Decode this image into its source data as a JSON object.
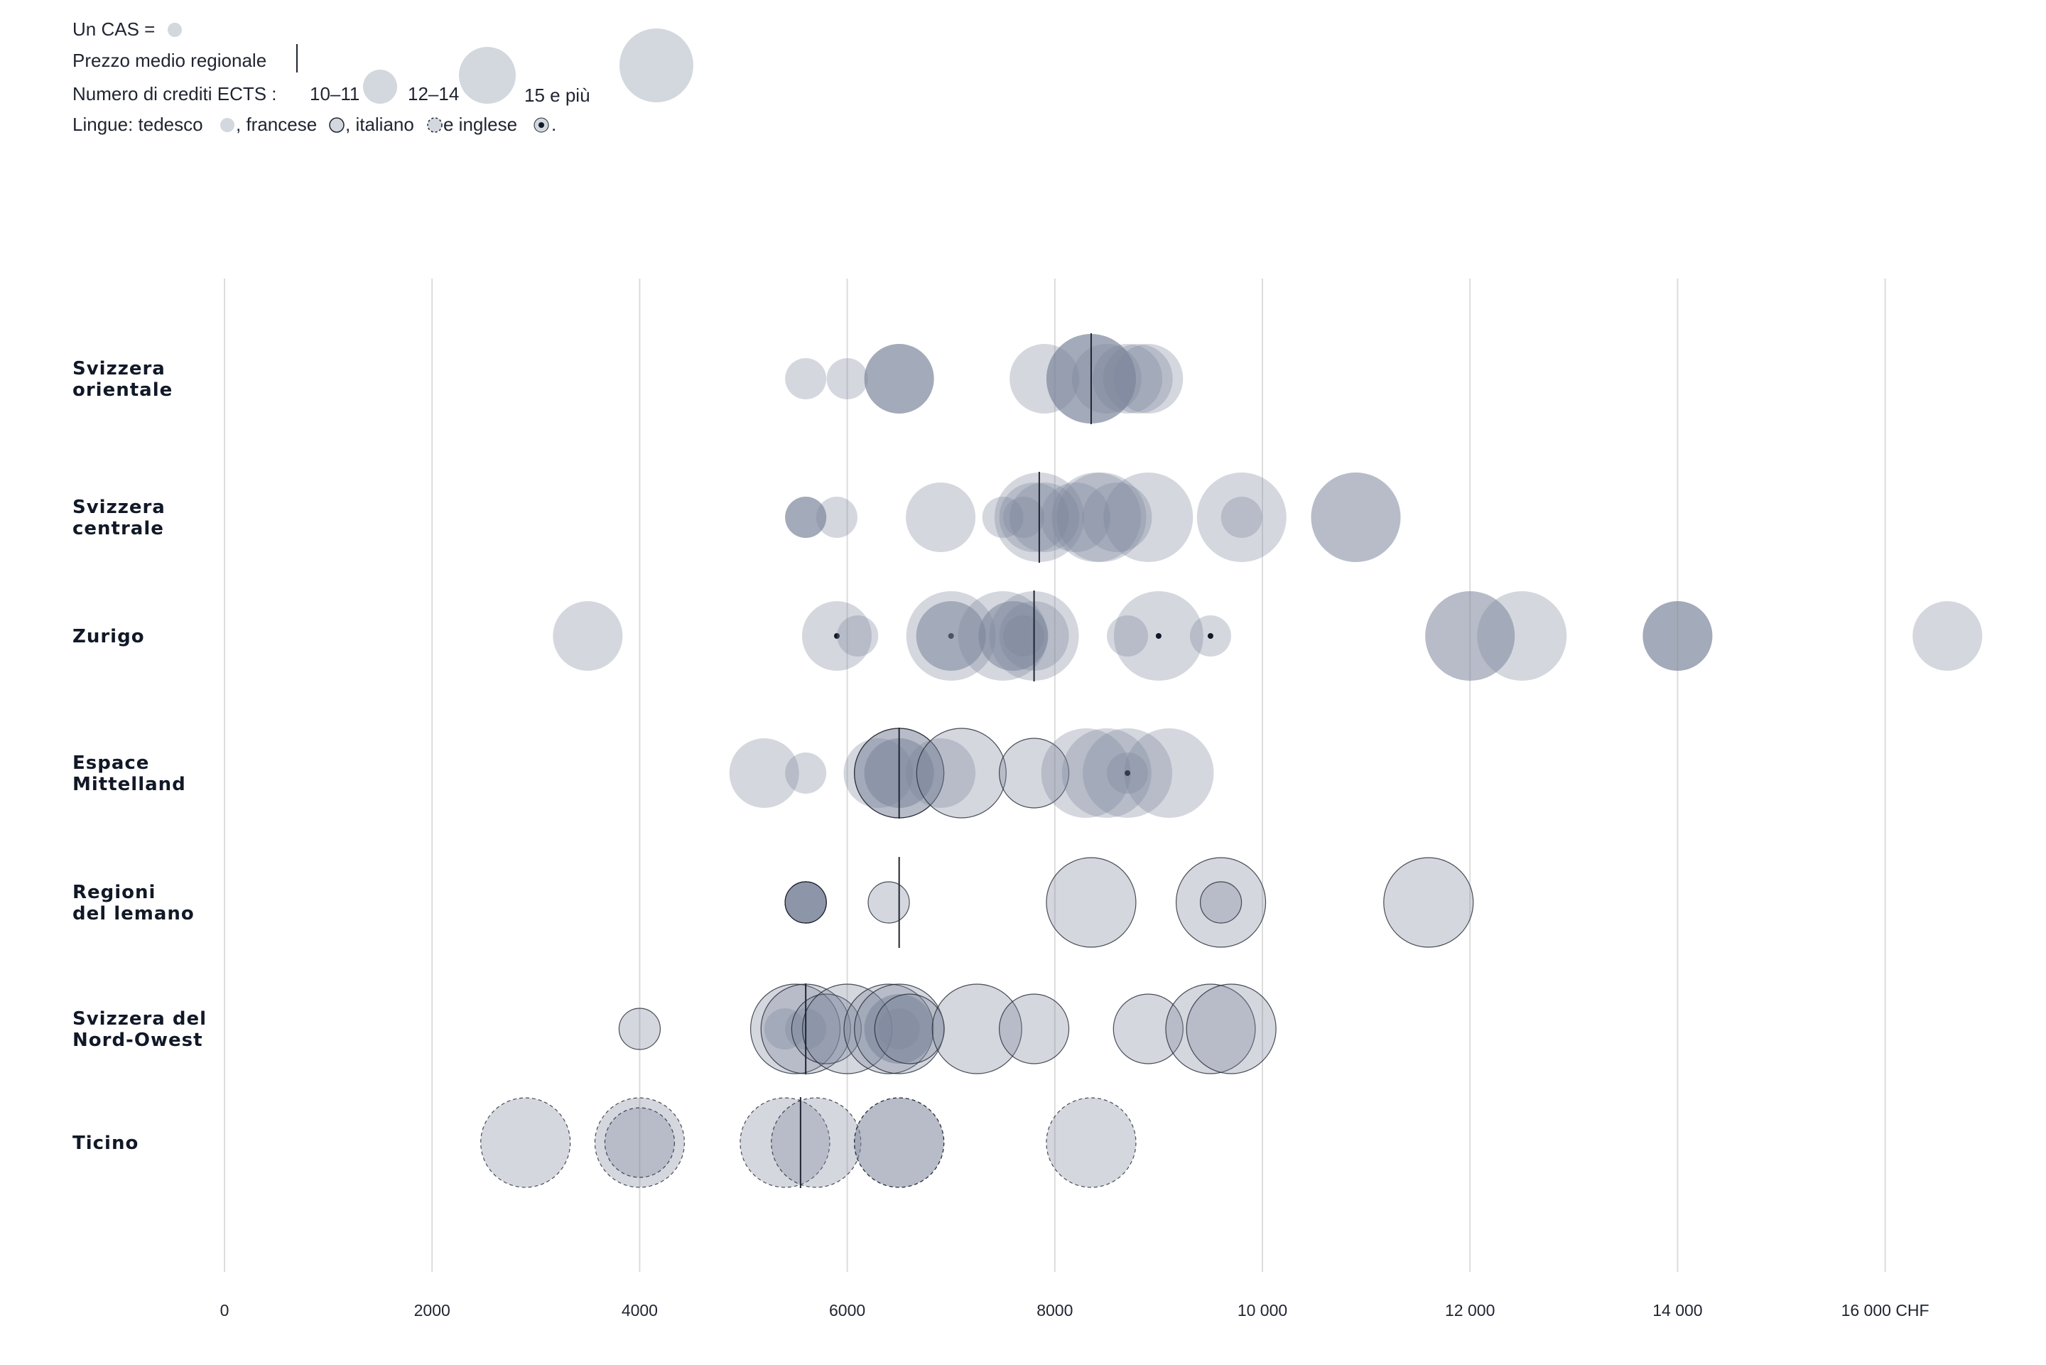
{
  "legend": {
    "one_cas": "Un CAS =",
    "avg_price": "Prezzo medio regionale",
    "ects_label": "Numero di crediti ECTS :",
    "ects_small": "10–11",
    "ects_medium": "12–14",
    "ects_large": "15 e più",
    "lang_prefix": "Lingue: tedesco",
    "lang_fr": ", francese",
    "lang_it": ", italiano",
    "lang_en": " e inglese",
    "lang_end": "."
  },
  "colors": {
    "bubble": "#7b879c",
    "bubble_light": "#d3d7de",
    "grid": "#dcdcdc",
    "text": "#111827",
    "avg_line": "#1f2430"
  },
  "chart_data": {
    "type": "scatter",
    "xlim": [
      0,
      17000
    ],
    "x_ticks": [
      0,
      2000,
      4000,
      6000,
      8000,
      10000,
      12000,
      14000,
      16000
    ],
    "x_tick_labels": [
      "0",
      "2000",
      "4000",
      "6000",
      "8000",
      "10 000",
      "12 000",
      "14 000",
      "16 000 CHF"
    ],
    "size_categories": [
      "10–11",
      "12–14",
      "15 e più"
    ],
    "languages": [
      "tedesco",
      "francese",
      "italiano",
      "inglese"
    ],
    "regions": [
      {
        "name": "Svizzera\norientale",
        "label_lines": [
          "Svizzera",
          "orientale"
        ],
        "average": 8350,
        "points": [
          {
            "price": 5600,
            "size": "10–11",
            "lang": "tedesco"
          },
          {
            "price": 6000,
            "size": "10–11",
            "lang": "tedesco"
          },
          {
            "price": 6500,
            "size": "12–14",
            "lang": "tedesco"
          },
          {
            "price": 6500,
            "size": "12–14",
            "lang": "tedesco"
          },
          {
            "price": 6500,
            "size": "12–14",
            "lang": "tedesco"
          },
          {
            "price": 7900,
            "size": "12–14",
            "lang": "tedesco"
          },
          {
            "price": 8350,
            "size": "15 e più",
            "lang": "tedesco"
          },
          {
            "price": 8350,
            "size": "15 e più",
            "lang": "tedesco"
          },
          {
            "price": 8350,
            "size": "15 e più",
            "lang": "tedesco"
          },
          {
            "price": 8500,
            "size": "12–14",
            "lang": "tedesco"
          },
          {
            "price": 8700,
            "size": "12–14",
            "lang": "tedesco"
          },
          {
            "price": 8800,
            "size": "12–14",
            "lang": "tedesco"
          },
          {
            "price": 8900,
            "size": "12–14",
            "lang": "tedesco"
          }
        ]
      },
      {
        "name": "Svizzera\ncentrale",
        "label_lines": [
          "Svizzera",
          "centrale"
        ],
        "average": 7850,
        "points": [
          {
            "price": 5600,
            "size": "10–11",
            "lang": "tedesco"
          },
          {
            "price": 5600,
            "size": "10–11",
            "lang": "tedesco"
          },
          {
            "price": 5600,
            "size": "10–11",
            "lang": "tedesco"
          },
          {
            "price": 5900,
            "size": "10–11",
            "lang": "tedesco"
          },
          {
            "price": 6900,
            "size": "12–14",
            "lang": "tedesco"
          },
          {
            "price": 7500,
            "size": "10–11",
            "lang": "tedesco"
          },
          {
            "price": 7700,
            "size": "10–11",
            "lang": "tedesco"
          },
          {
            "price": 7800,
            "size": "12–14",
            "lang": "tedesco"
          },
          {
            "price": 7850,
            "size": "15 e più",
            "lang": "tedesco"
          },
          {
            "price": 7900,
            "size": "12–14",
            "lang": "tedesco"
          },
          {
            "price": 8200,
            "size": "12–14",
            "lang": "tedesco"
          },
          {
            "price": 8400,
            "size": "15 e più",
            "lang": "tedesco"
          },
          {
            "price": 8450,
            "size": "15 e più",
            "lang": "tedesco"
          },
          {
            "price": 8600,
            "size": "12–14",
            "lang": "tedesco"
          },
          {
            "price": 8900,
            "size": "15 e più",
            "lang": "tedesco"
          },
          {
            "price": 9800,
            "size": "15 e più",
            "lang": "tedesco"
          },
          {
            "price": 9800,
            "size": "10–11",
            "lang": "tedesco"
          },
          {
            "price": 10900,
            "size": "15 e più",
            "lang": "tedesco"
          },
          {
            "price": 10900,
            "size": "15 e più",
            "lang": "tedesco"
          }
        ]
      },
      {
        "name": "Zurigo",
        "label_lines": [
          "Zurigo"
        ],
        "average": 7800,
        "points": [
          {
            "price": 3500,
            "size": "12–14",
            "lang": "tedesco"
          },
          {
            "price": 5900,
            "size": "12–14",
            "lang": "inglese"
          },
          {
            "price": 6100,
            "size": "10–11",
            "lang": "tedesco"
          },
          {
            "price": 7000,
            "size": "15 e più",
            "lang": "inglese"
          },
          {
            "price": 7000,
            "size": "12–14",
            "lang": "tedesco"
          },
          {
            "price": 7000,
            "size": "12–14",
            "lang": "tedesco"
          },
          {
            "price": 7500,
            "size": "15 e più",
            "lang": "tedesco"
          },
          {
            "price": 7600,
            "size": "12–14",
            "lang": "tedesco"
          },
          {
            "price": 7600,
            "size": "12–14",
            "lang": "tedesco"
          },
          {
            "price": 7700,
            "size": "10–11",
            "lang": "tedesco"
          },
          {
            "price": 7800,
            "size": "15 e più",
            "lang": "tedesco"
          },
          {
            "price": 7800,
            "size": "12–14",
            "lang": "tedesco"
          },
          {
            "price": 8700,
            "size": "10–11",
            "lang": "tedesco"
          },
          {
            "price": 9000,
            "size": "15 e più",
            "lang": "inglese"
          },
          {
            "price": 9500,
            "size": "10–11",
            "lang": "inglese"
          },
          {
            "price": 12000,
            "size": "15 e più",
            "lang": "tedesco"
          },
          {
            "price": 12000,
            "size": "15 e più",
            "lang": "tedesco"
          },
          {
            "price": 12500,
            "size": "15 e più",
            "lang": "tedesco"
          },
          {
            "price": 14000,
            "size": "12–14",
            "lang": "tedesco"
          },
          {
            "price": 14000,
            "size": "12–14",
            "lang": "tedesco"
          },
          {
            "price": 14000,
            "size": "12–14",
            "lang": "tedesco"
          },
          {
            "price": 16600,
            "size": "12–14",
            "lang": "tedesco"
          }
        ]
      },
      {
        "name": "Espace\nMittelland",
        "label_lines": [
          "Espace",
          "Mittelland"
        ],
        "average": 6500,
        "points": [
          {
            "price": 5200,
            "size": "12–14",
            "lang": "tedesco"
          },
          {
            "price": 5600,
            "size": "10–11",
            "lang": "tedesco"
          },
          {
            "price": 6300,
            "size": "12–14",
            "lang": "tedesco"
          },
          {
            "price": 6500,
            "size": "15 e più",
            "lang": "francese"
          },
          {
            "price": 6500,
            "size": "15 e più",
            "lang": "francese"
          },
          {
            "price": 6500,
            "size": "12–14",
            "lang": "tedesco"
          },
          {
            "price": 6500,
            "size": "12–14",
            "lang": "tedesco"
          },
          {
            "price": 6900,
            "size": "12–14",
            "lang": "tedesco"
          },
          {
            "price": 7100,
            "size": "15 e più",
            "lang": "francese"
          },
          {
            "price": 7800,
            "size": "12–14",
            "lang": "francese"
          },
          {
            "price": 8300,
            "size": "15 e più",
            "lang": "tedesco"
          },
          {
            "price": 8500,
            "size": "15 e più",
            "lang": "tedesco"
          },
          {
            "price": 8700,
            "size": "15 e più",
            "lang": "tedesco"
          },
          {
            "price": 8700,
            "size": "10–11",
            "lang": "inglese"
          },
          {
            "price": 9100,
            "size": "15 e più",
            "lang": "tedesco"
          }
        ]
      },
      {
        "name": "Regioni\ndel lemano",
        "label_lines": [
          "Regioni",
          "del lemano"
        ],
        "average": 6500,
        "points": [
          {
            "price": 5600,
            "size": "10–11",
            "lang": "francese"
          },
          {
            "price": 5600,
            "size": "10–11",
            "lang": "francese"
          },
          {
            "price": 5600,
            "size": "10–11",
            "lang": "francese"
          },
          {
            "price": 5600,
            "size": "10–11",
            "lang": "francese"
          },
          {
            "price": 5600,
            "size": "10–11",
            "lang": "francese"
          },
          {
            "price": 6400,
            "size": "10–11",
            "lang": "francese"
          },
          {
            "price": 8350,
            "size": "15 e più",
            "lang": "francese"
          },
          {
            "price": 9600,
            "size": "15 e più",
            "lang": "francese"
          },
          {
            "price": 9600,
            "size": "10–11",
            "lang": "francese"
          },
          {
            "price": 11600,
            "size": "15 e più",
            "lang": "francese"
          }
        ]
      },
      {
        "name": "Svizzera del\nNord-Owest",
        "label_lines": [
          "Svizzera del",
          "Nord-Owest"
        ],
        "average": 5600,
        "points": [
          {
            "price": 4000,
            "size": "10–11",
            "lang": "francese"
          },
          {
            "price": 5500,
            "size": "15 e più",
            "lang": "francese"
          },
          {
            "price": 5600,
            "size": "15 e più",
            "lang": "francese"
          },
          {
            "price": 5400,
            "size": "10–11",
            "lang": "tedesco"
          },
          {
            "price": 5600,
            "size": "10–11",
            "lang": "tedesco"
          },
          {
            "price": 5800,
            "size": "12–14",
            "lang": "francese"
          },
          {
            "price": 6000,
            "size": "15 e più",
            "lang": "francese"
          },
          {
            "price": 6400,
            "size": "15 e più",
            "lang": "francese"
          },
          {
            "price": 6500,
            "size": "15 e più",
            "lang": "francese"
          },
          {
            "price": 6500,
            "size": "12–14",
            "lang": "tedesco"
          },
          {
            "price": 6500,
            "size": "12–14",
            "lang": "tedesco"
          },
          {
            "price": 6500,
            "size": "10–11",
            "lang": "tedesco"
          },
          {
            "price": 6600,
            "size": "12–14",
            "lang": "francese"
          },
          {
            "price": 7250,
            "size": "15 e più",
            "lang": "francese"
          },
          {
            "price": 7800,
            "size": "12–14",
            "lang": "francese"
          },
          {
            "price": 8900,
            "size": "12–14",
            "lang": "francese"
          },
          {
            "price": 9500,
            "size": "15 e più",
            "lang": "francese"
          },
          {
            "price": 9700,
            "size": "15 e più",
            "lang": "francese"
          }
        ]
      },
      {
        "name": "Ticino",
        "label_lines": [
          "Ticino"
        ],
        "average": 5550,
        "points": [
          {
            "price": 2900,
            "size": "15 e più",
            "lang": "italiano"
          },
          {
            "price": 4000,
            "size": "15 e più",
            "lang": "italiano"
          },
          {
            "price": 4000,
            "size": "12–14",
            "lang": "italiano"
          },
          {
            "price": 5400,
            "size": "15 e più",
            "lang": "italiano"
          },
          {
            "price": 5700,
            "size": "15 e più",
            "lang": "italiano"
          },
          {
            "price": 6500,
            "size": "15 e più",
            "lang": "italiano"
          },
          {
            "price": 6500,
            "size": "15 e più",
            "lang": "italiano"
          },
          {
            "price": 8350,
            "size": "15 e più",
            "lang": "italiano"
          }
        ]
      }
    ]
  }
}
